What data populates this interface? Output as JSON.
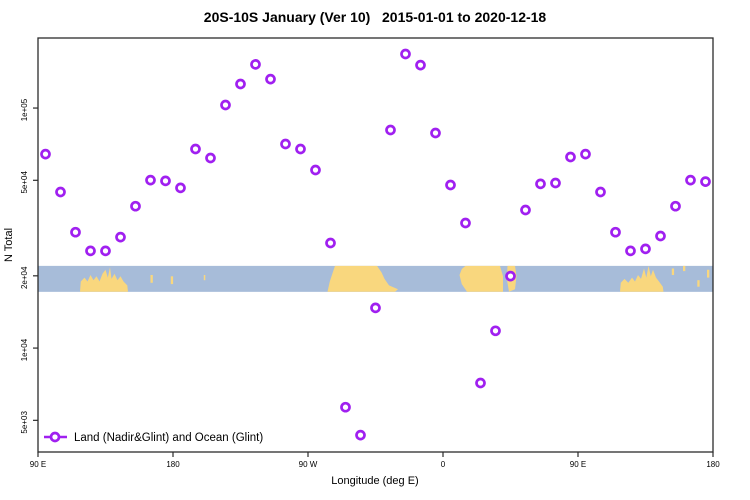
{
  "title": "20S-10S January (Ver 10)   2015-01-01 to 2020-12-18",
  "chart_data": {
    "type": "scatter",
    "title": "20S-10S January (Ver 10)   2015-01-01 to 2020-12-18",
    "xlabel": "Longitude (deg E)",
    "ylabel": "N Total",
    "legend": "Land (Nadir&Glint) and Ocean (Glint)",
    "legend_position": "bottom-left",
    "y_scale": "log",
    "grid": "off",
    "xlim": [
      90,
      540
    ],
    "ylim": [
      3690,
      195800
    ],
    "marker_color": "#A020F0",
    "frame_color": "#2b2b2b",
    "x_ticks": [
      {
        "pos": 90,
        "label": "90 E"
      },
      {
        "pos": 180,
        "label": "180"
      },
      {
        "pos": 270,
        "label": "90 W"
      },
      {
        "pos": 360,
        "label": "0"
      },
      {
        "pos": 450,
        "label": "90 E"
      },
      {
        "pos": 540,
        "label": "180"
      }
    ],
    "y_ticks": [
      {
        "value": 5000,
        "label": "5e+03"
      },
      {
        "value": 10000,
        "label": "1e+04"
      },
      {
        "value": 20000,
        "label": "2e+04"
      },
      {
        "value": 50000,
        "label": "5e+04"
      },
      {
        "value": 100000,
        "label": "1e+05"
      }
    ],
    "points": [
      [
        95,
        64300
      ],
      [
        105,
        44700
      ],
      [
        115,
        30400
      ],
      [
        125,
        25400
      ],
      [
        135,
        25400
      ],
      [
        145,
        29000
      ],
      [
        155,
        39000
      ],
      [
        165,
        50100
      ],
      [
        175,
        49700
      ],
      [
        185,
        46500
      ],
      [
        195,
        67500
      ],
      [
        205,
        61900
      ],
      [
        215,
        103000
      ],
      [
        225,
        126000
      ],
      [
        235,
        152000
      ],
      [
        245,
        132000
      ],
      [
        255,
        70800
      ],
      [
        265,
        67500
      ],
      [
        275,
        55200
      ],
      [
        285,
        27400
      ],
      [
        295,
        5670
      ],
      [
        305,
        4340
      ],
      [
        315,
        14700
      ],
      [
        325,
        81000
      ],
      [
        335,
        168000
      ],
      [
        345,
        151000
      ],
      [
        355,
        78700
      ],
      [
        365,
        47800
      ],
      [
        375,
        33200
      ],
      [
        385,
        7150
      ],
      [
        395,
        11800
      ],
      [
        405,
        19950
      ],
      [
        415,
        37600
      ],
      [
        425,
        48300
      ],
      [
        435,
        48700
      ],
      [
        445,
        62500
      ],
      [
        455,
        64300
      ],
      [
        465,
        44700
      ],
      [
        475,
        30400
      ],
      [
        485,
        25400
      ],
      [
        495,
        25900
      ],
      [
        505,
        29300
      ],
      [
        515,
        39000
      ],
      [
        525,
        50100
      ],
      [
        535,
        49400
      ]
    ],
    "map_strip": {
      "top_value": 22000,
      "bottom_value": 17150,
      "ocean_color": "#a7bcd9",
      "land_color": "#f9d77e",
      "land_polygons": [
        {
          "name": "australia-west",
          "points": [
            [
              118,
              1
            ],
            [
              118.5,
              0.6
            ],
            [
              121,
              0.45
            ],
            [
              123,
              0.6
            ],
            [
              125,
              0.35
            ],
            [
              127,
              0.55
            ],
            [
              129,
              0.4
            ],
            [
              131,
              0.6
            ],
            [
              133,
              0.3
            ],
            [
              135,
              0.15
            ],
            [
              136.5,
              0.45
            ],
            [
              138,
              0.05
            ],
            [
              139,
              0.5
            ],
            [
              141,
              0.3
            ],
            [
              143,
              0.55
            ],
            [
              145,
              0.4
            ],
            [
              147,
              0.6
            ],
            [
              149.5,
              0.75
            ],
            [
              150,
              1
            ]
          ]
        },
        {
          "name": "south-america",
          "points": [
            [
              288,
              0
            ],
            [
              316,
              0
            ],
            [
              319,
              0.25
            ],
            [
              321,
              0.5
            ],
            [
              324,
              0.75
            ],
            [
              330,
              0.9
            ],
            [
              328,
              1
            ],
            [
              283,
              1
            ],
            [
              284.5,
              0.6
            ],
            [
              286.5,
              0.25
            ]
          ]
        },
        {
          "name": "africa",
          "points": [
            [
              375,
              0
            ],
            [
              398,
              0
            ],
            [
              400,
              0.4
            ],
            [
              400,
              1
            ],
            [
              376,
              1
            ],
            [
              372.5,
              0.7
            ],
            [
              371,
              0.35
            ],
            [
              372.5,
              0.12
            ]
          ]
        },
        {
          "name": "madagascar",
          "points": [
            [
              403,
              0
            ],
            [
              408,
              0
            ],
            [
              409,
              0.4
            ],
            [
              408,
              0.9
            ],
            [
              404,
              1
            ],
            [
              402.5,
              0.5
            ]
          ]
        },
        {
          "name": "australia-east",
          "points": [
            [
              478,
              1
            ],
            [
              478.5,
              0.65
            ],
            [
              481,
              0.5
            ],
            [
              483.5,
              0.65
            ],
            [
              486,
              0.45
            ],
            [
              488,
              0.6
            ],
            [
              490,
              0.35
            ],
            [
              492,
              0.5
            ],
            [
              494,
              0.1
            ],
            [
              495.5,
              0.45
            ],
            [
              497,
              0.0
            ],
            [
              498.5,
              0.4
            ],
            [
              500,
              0.15
            ],
            [
              502,
              0.45
            ],
            [
              504,
              0.6
            ],
            [
              506.5,
              0.8
            ],
            [
              507,
              1
            ]
          ]
        }
      ],
      "land_dots": [
        [
          165,
          0.35,
          166.5,
          0.65
        ],
        [
          178.5,
          0.4,
          180,
          0.7
        ],
        [
          200.5,
          0.35,
          201.5,
          0.55
        ],
        [
          512.5,
          0.1,
          514,
          0.35
        ],
        [
          520,
          0.0,
          521.5,
          0.2
        ],
        [
          529.5,
          0.55,
          531,
          0.8
        ],
        [
          536,
          0.15,
          537.5,
          0.45
        ]
      ]
    }
  }
}
